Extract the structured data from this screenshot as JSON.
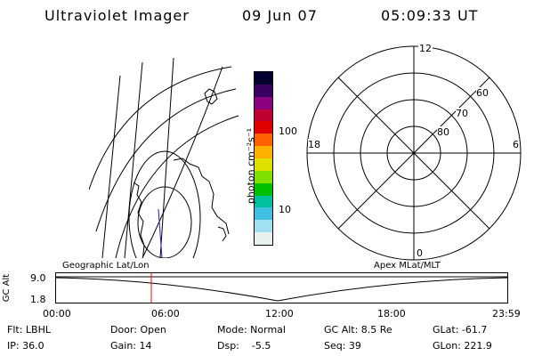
{
  "header": {
    "instrument": "Ultraviolet Imager",
    "date": "09 Jun 07",
    "time": "05:09:33 UT"
  },
  "colorbar": {
    "unit_label": "photon cm⁻²s⁻¹",
    "ticks": [
      "100",
      "10"
    ],
    "colors": [
      "#000030",
      "#3a0060",
      "#8a0080",
      "#c00030",
      "#e00000",
      "#ff6000",
      "#ffb000",
      "#e0e000",
      "#80e000",
      "#00c000",
      "#00c0a0",
      "#40c0e0",
      "#a0e0f0",
      "#e8f0f0"
    ]
  },
  "polar_plot": {
    "mlt_labels": {
      "top": "12",
      "left": "18",
      "right": "6",
      "bottom": "0"
    },
    "lat_labels": [
      "60",
      "70",
      "80"
    ]
  },
  "timeline": {
    "left_label": "Geographic Lat/Lon",
    "right_label": "Apex MLat/MLT",
    "yaxis_label": "GC Alt",
    "y_ticks": [
      "9.0",
      "1.8"
    ],
    "x_ticks": [
      "00:00",
      "06:00",
      "12:00",
      "18:00",
      "23:59"
    ],
    "marker_color": "#ff0000"
  },
  "footer": {
    "filter": "Flt: LBHL",
    "ip": "IP: 36.0",
    "door": "Door: Open",
    "gain": "Gain: 14",
    "mode": "Mode: Normal",
    "dsp": "Dsp:    -5.5",
    "gc_alt": "GC Alt: 8.5 Re",
    "seq": "Seq: 39",
    "glat": "GLat: -61.7",
    "glon": "GLon: 221.9"
  }
}
